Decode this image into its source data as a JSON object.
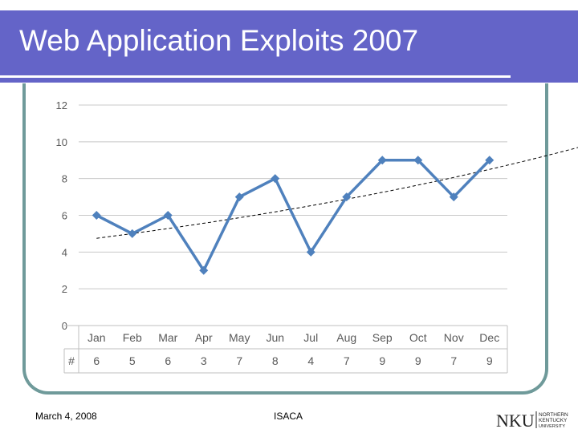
{
  "slide": {
    "title": "Web Application Exploits 2007",
    "footer_date": "March 4, 2008",
    "footer_org": "ISACA",
    "logo_text": "NKU",
    "logo_subtext": [
      "NORTHERN",
      "KENTUCKY",
      "UNIVERSITY"
    ]
  },
  "chart_data": {
    "type": "line",
    "title": "",
    "xlabel": "",
    "ylabel": "",
    "categories": [
      "Jan",
      "Feb",
      "Mar",
      "Apr",
      "May",
      "Jun",
      "Jul",
      "Aug",
      "Sep",
      "Oct",
      "Nov",
      "Dec"
    ],
    "series": [
      {
        "values": [
          6,
          5,
          6,
          3,
          7,
          8,
          4,
          7,
          9,
          9,
          7,
          9
        ],
        "color": "#4f81bd"
      }
    ],
    "trendline": {
      "type": "exponential",
      "style": "dashed",
      "color": "#000000"
    },
    "ylim": [
      0,
      12
    ],
    "yticks": [
      0,
      2,
      4,
      6,
      8,
      10,
      12
    ],
    "grid": true,
    "data_table": {
      "row_label": "#",
      "values": [
        6,
        5,
        6,
        3,
        7,
        8,
        4,
        7,
        9,
        9,
        7,
        9
      ]
    }
  }
}
